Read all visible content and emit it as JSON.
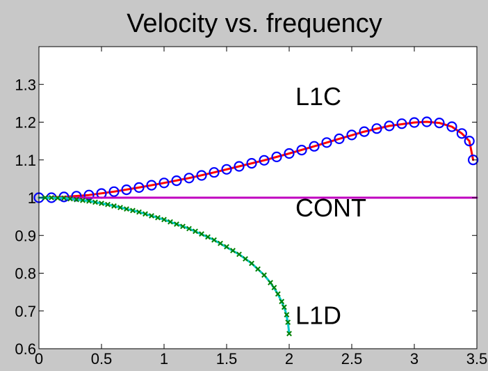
{
  "chart_data": {
    "type": "line",
    "title": "Velocity vs. frequency",
    "xlabel": "",
    "ylabel": "",
    "xlim": [
      0,
      3.5
    ],
    "ylim": [
      0.6,
      1.4
    ],
    "grid": false,
    "x_ticks": [
      {
        "value": 0,
        "label": "0"
      },
      {
        "value": 0.5,
        "label": "0.5"
      },
      {
        "value": 1,
        "label": "1"
      },
      {
        "value": 1.5,
        "label": "1.5"
      },
      {
        "value": 2,
        "label": "2"
      },
      {
        "value": 2.5,
        "label": "2.5"
      },
      {
        "value": 3,
        "label": "3"
      },
      {
        "value": 3.5,
        "label": "3.5"
      }
    ],
    "y_ticks": [
      {
        "value": 0.6,
        "label": "0.6"
      },
      {
        "value": 0.7,
        "label": "0.7"
      },
      {
        "value": 0.8,
        "label": "0.8"
      },
      {
        "value": 0.9,
        "label": "0.9"
      },
      {
        "value": 1.0,
        "label": "1"
      },
      {
        "value": 1.1,
        "label": "1.1"
      },
      {
        "value": 1.2,
        "label": "1.2"
      },
      {
        "value": 1.3,
        "label": "1.3"
      }
    ],
    "series": [
      {
        "name": "",
        "style": "line",
        "color": "#ff0000",
        "x": [
          0,
          0.2,
          0.4,
          0.6,
          0.8,
          1.0,
          1.2,
          1.4,
          1.6,
          1.8,
          2.0,
          2.2,
          2.4,
          2.6,
          2.8,
          3.0,
          3.1,
          3.2,
          3.3,
          3.38,
          3.44,
          3.47
        ],
        "y": [
          1.0,
          1.002,
          1.007,
          1.016,
          1.027,
          1.039,
          1.052,
          1.067,
          1.083,
          1.099,
          1.117,
          1.136,
          1.156,
          1.175,
          1.19,
          1.199,
          1.201,
          1.198,
          1.188,
          1.17,
          1.15,
          1.1
        ]
      },
      {
        "name": "",
        "style": "markers",
        "marker": "circle",
        "color": "#0000ff",
        "x": [
          0,
          0.1,
          0.2,
          0.3,
          0.4,
          0.5,
          0.6,
          0.7,
          0.8,
          0.9,
          1.0,
          1.1,
          1.2,
          1.3,
          1.4,
          1.5,
          1.6,
          1.7,
          1.8,
          1.9,
          2.0,
          2.1,
          2.2,
          2.3,
          2.4,
          2.5,
          2.6,
          2.7,
          2.8,
          2.9,
          3.0,
          3.1,
          3.2,
          3.3,
          3.38,
          3.44,
          3.47
        ],
        "y": [
          1.0,
          1.0,
          1.002,
          1.004,
          1.007,
          1.011,
          1.016,
          1.021,
          1.027,
          1.033,
          1.039,
          1.045,
          1.052,
          1.059,
          1.067,
          1.075,
          1.083,
          1.091,
          1.099,
          1.108,
          1.117,
          1.126,
          1.136,
          1.146,
          1.156,
          1.166,
          1.175,
          1.183,
          1.19,
          1.196,
          1.199,
          1.201,
          1.198,
          1.188,
          1.17,
          1.15,
          1.1
        ]
      },
      {
        "name": "",
        "style": "line",
        "color": "#c000c0",
        "x": [
          0,
          3.5
        ],
        "y": [
          1.0,
          1.0
        ]
      },
      {
        "name": "",
        "style": "line",
        "color": "#00c8c8",
        "x": [
          0,
          0.2,
          0.4,
          0.5,
          0.6,
          0.8,
          1.0,
          1.2,
          1.4,
          1.6,
          1.7,
          1.8,
          1.85,
          1.9,
          1.94,
          1.97,
          1.99,
          2.0
        ],
        "y": [
          1.0,
          0.999,
          0.991,
          0.985,
          0.978,
          0.962,
          0.942,
          0.918,
          0.888,
          0.85,
          0.826,
          0.795,
          0.775,
          0.75,
          0.725,
          0.7,
          0.67,
          0.64
        ]
      },
      {
        "name": "",
        "style": "markers",
        "marker": "x",
        "color": "#008000",
        "x": [
          0.05,
          0.1,
          0.15,
          0.2,
          0.25,
          0.3,
          0.35,
          0.4,
          0.45,
          0.5,
          0.55,
          0.6,
          0.65,
          0.7,
          0.75,
          0.8,
          0.85,
          0.9,
          0.95,
          1.0,
          1.05,
          1.1,
          1.15,
          1.2,
          1.25,
          1.3,
          1.35,
          1.4,
          1.45,
          1.5,
          1.55,
          1.6,
          1.65,
          1.7,
          1.75,
          1.8,
          1.85,
          1.88,
          1.91,
          1.94,
          1.96,
          1.98,
          1.99,
          2.0
        ],
        "y": [
          1.0,
          1.0,
          0.999,
          0.999,
          0.997,
          0.995,
          0.993,
          0.991,
          0.988,
          0.985,
          0.982,
          0.978,
          0.974,
          0.97,
          0.966,
          0.962,
          0.957,
          0.952,
          0.947,
          0.942,
          0.936,
          0.93,
          0.924,
          0.918,
          0.911,
          0.904,
          0.896,
          0.888,
          0.879,
          0.87,
          0.86,
          0.85,
          0.838,
          0.826,
          0.811,
          0.795,
          0.775,
          0.762,
          0.745,
          0.725,
          0.71,
          0.69,
          0.67,
          0.64
        ]
      }
    ],
    "annotations": [
      {
        "text": "L1C",
        "x": 2.05,
        "y": 1.245
      },
      {
        "text": "CONT",
        "x": 2.05,
        "y": 0.95
      },
      {
        "text": "L1D",
        "x": 2.05,
        "y": 0.665
      }
    ]
  }
}
